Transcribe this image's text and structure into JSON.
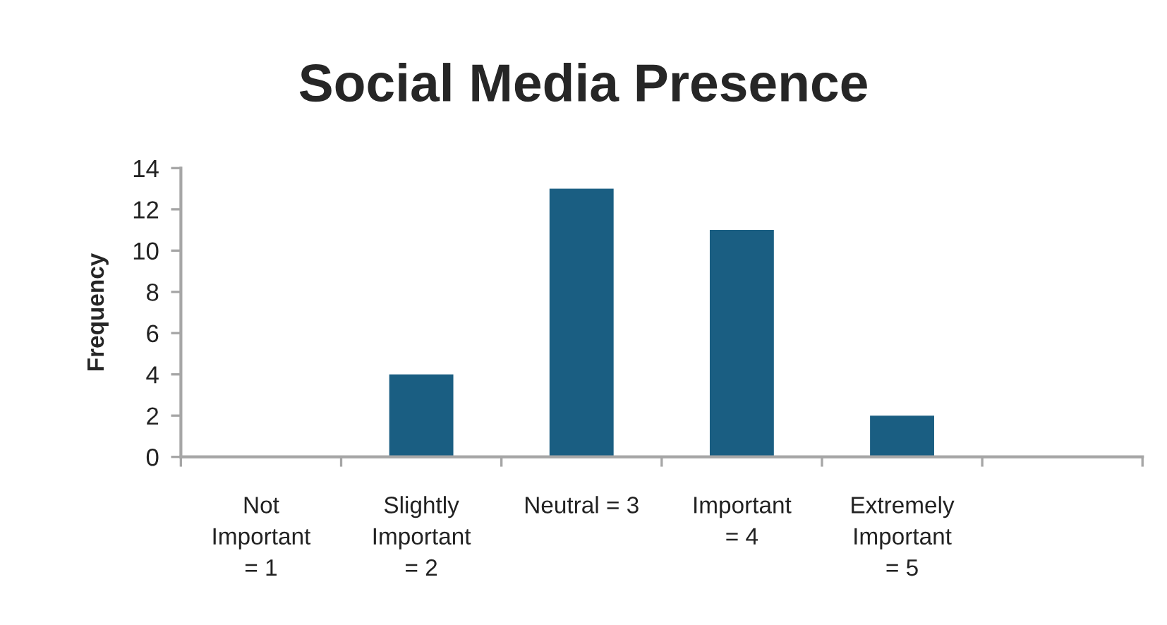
{
  "chart_data": {
    "type": "bar",
    "title": "Social Media Presence",
    "ylabel": "Frequency",
    "categories": [
      "Not Important = 1",
      "Slightly Important = 2",
      "Neutral = 3",
      "Important = 4",
      "Extremely Important = 5",
      null
    ],
    "values": [
      0,
      4,
      13,
      11,
      2,
      null
    ],
    "color": "#1a5e82",
    "ylim": [
      0,
      14
    ],
    "yticks": [
      0,
      2,
      4,
      6,
      8,
      10,
      12,
      14
    ],
    "grid": false,
    "legend": false
  }
}
